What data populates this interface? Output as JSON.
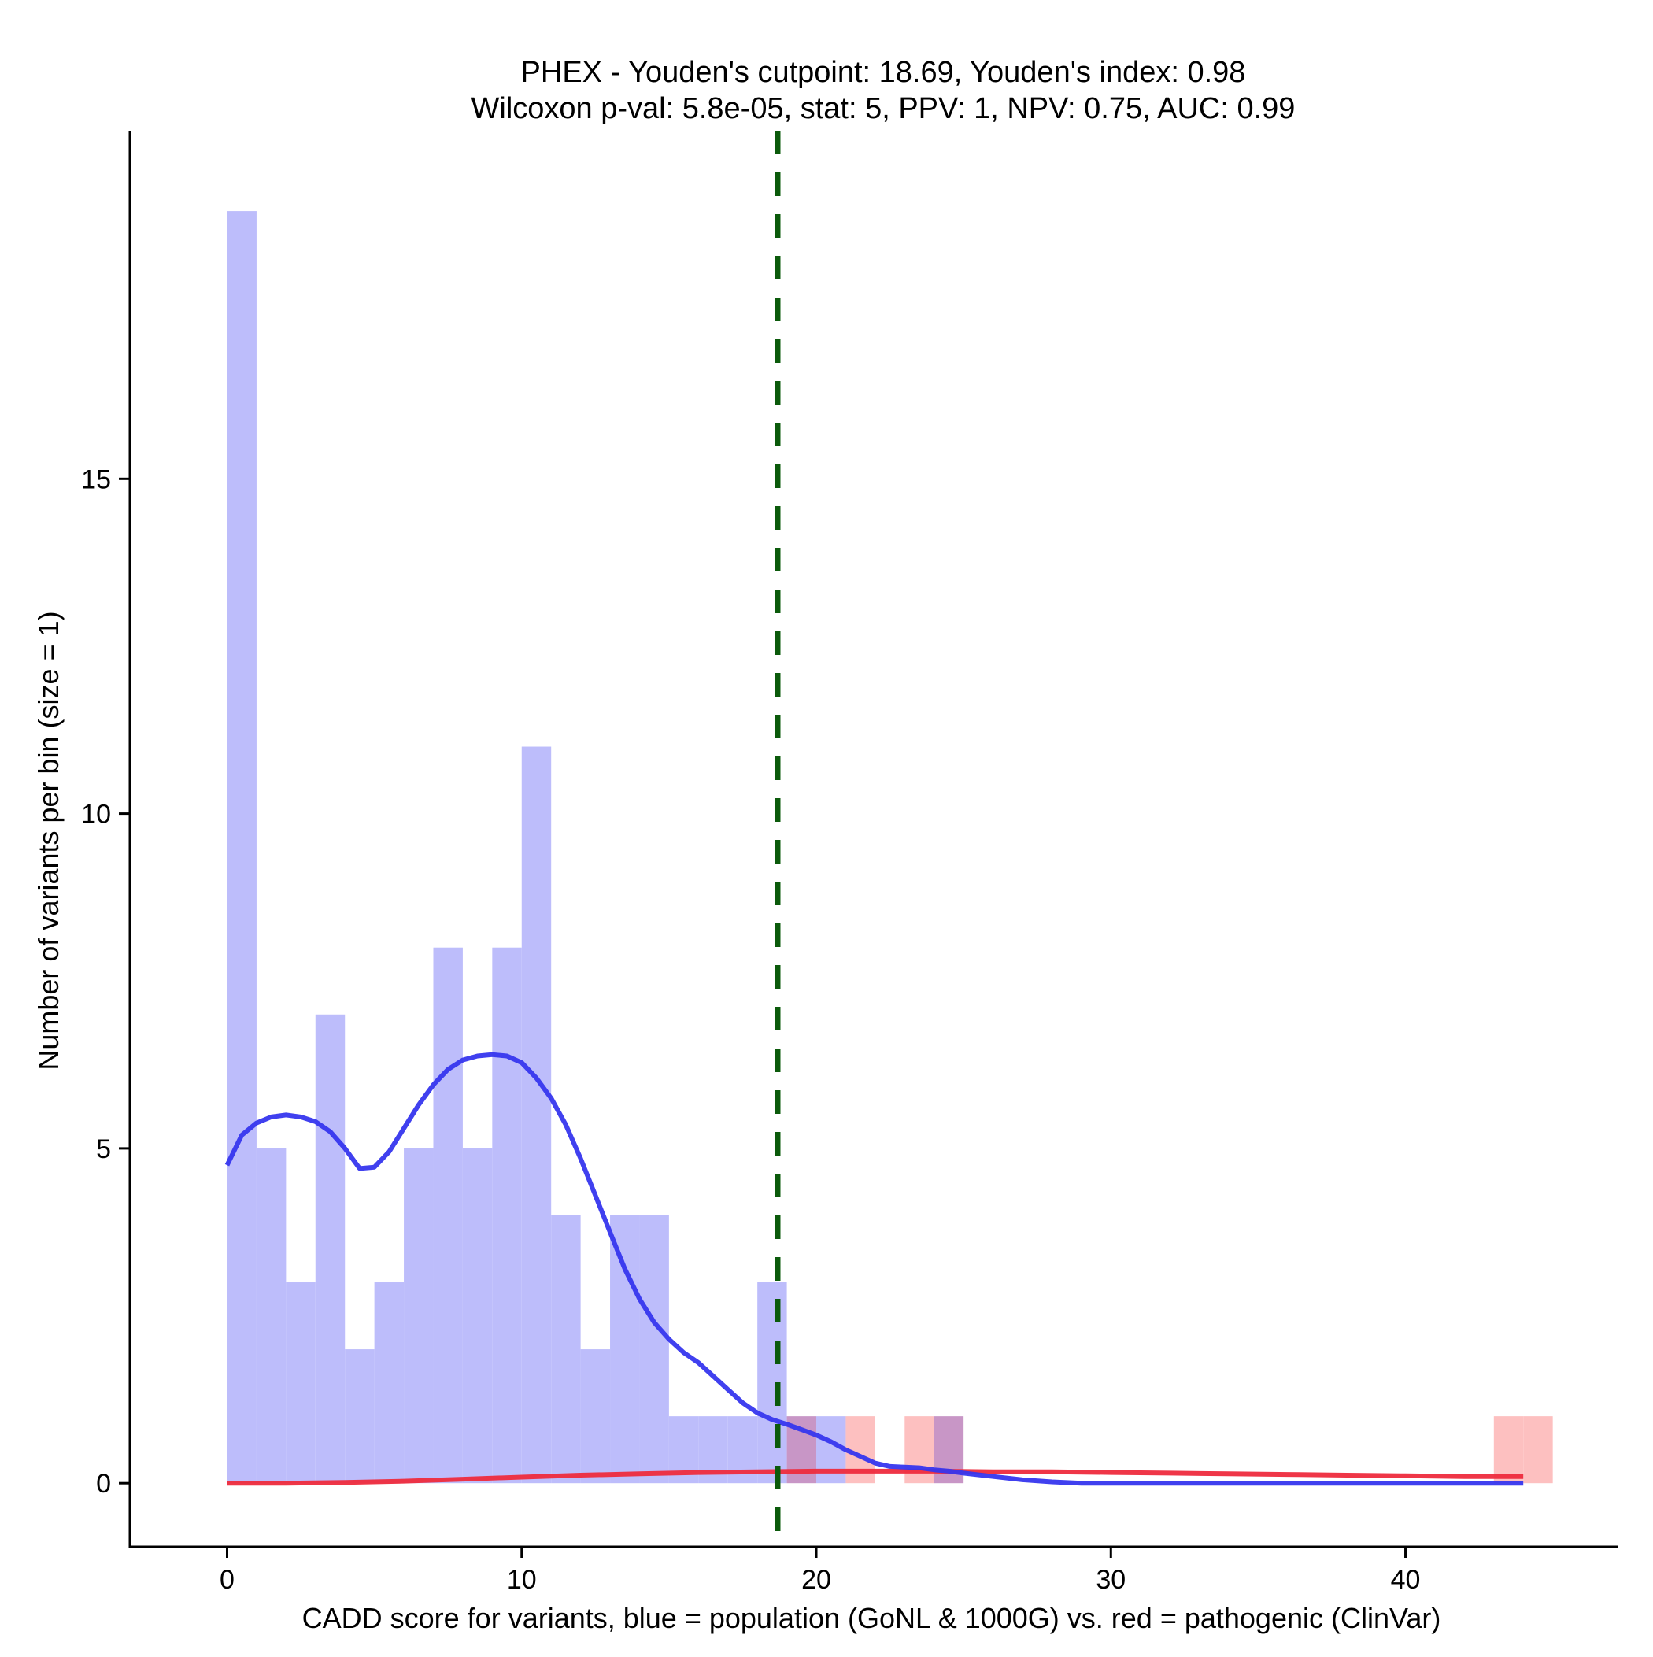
{
  "chart_data": {
    "type": "bar",
    "title": "PHEX - Youden's cutpoint: 18.69, Youden's index: 0.98",
    "subtitle": "Wilcoxon p-val: 5.8e-05, stat: 5, PPV: 1, NPV: 0.75, AUC: 0.99",
    "xlabel": "CADD score for variants, blue = population (GoNL & 1000G) vs. red = pathogenic (ClinVar)",
    "ylabel": "Number of variants per bin (size = 1)",
    "xlim": [
      -3.3,
      47.2
    ],
    "ylim": [
      -0.95,
      20.2
    ],
    "x_ticks": [
      0,
      10,
      20,
      30,
      40
    ],
    "y_ticks": [
      0,
      5,
      10,
      15
    ],
    "bin_size": 1,
    "cutpoint": 18.69,
    "grid": false,
    "legend": "none",
    "colors": {
      "population_bar": "#bdbdfb",
      "pathogenic_bar": "#fdc0c0",
      "overlap_bar": "#c896c6",
      "population_density": "#3636ee",
      "pathogenic_density": "#ee2b3d",
      "cutpoint_line": "#0b5a0b"
    },
    "series": [
      {
        "bins": [
          [
            0,
            19
          ],
          [
            1,
            5
          ],
          [
            2,
            3
          ],
          [
            3,
            7
          ],
          [
            4,
            2
          ],
          [
            5,
            3
          ],
          [
            6,
            5
          ],
          [
            7,
            8
          ],
          [
            8,
            5
          ],
          [
            9,
            8
          ],
          [
            10,
            11
          ],
          [
            11,
            4
          ],
          [
            12,
            2
          ],
          [
            13,
            4
          ],
          [
            14,
            4
          ],
          [
            15,
            1
          ],
          [
            16,
            1
          ],
          [
            17,
            1
          ],
          [
            18,
            3
          ],
          [
            19,
            1
          ],
          [
            20,
            1
          ],
          [
            24,
            1
          ]
        ]
      },
      {
        "bins": [
          [
            19,
            1
          ],
          [
            21,
            1
          ],
          [
            23,
            1
          ],
          [
            24,
            1
          ],
          [
            43,
            1
          ],
          [
            44,
            1
          ]
        ]
      }
    ],
    "density_curves": [
      {
        "points": [
          [
            0,
            4.75
          ],
          [
            0.5,
            5.2
          ],
          [
            1,
            5.38
          ],
          [
            1.5,
            5.47
          ],
          [
            2,
            5.5
          ],
          [
            2.5,
            5.47
          ],
          [
            3,
            5.4
          ],
          [
            3.5,
            5.25
          ],
          [
            4,
            5.0
          ],
          [
            4.5,
            4.7
          ],
          [
            5,
            4.72
          ],
          [
            5.5,
            4.95
          ],
          [
            6,
            5.3
          ],
          [
            6.5,
            5.65
          ],
          [
            7,
            5.95
          ],
          [
            7.5,
            6.18
          ],
          [
            8,
            6.32
          ],
          [
            8.5,
            6.38
          ],
          [
            9,
            6.4
          ],
          [
            9.5,
            6.38
          ],
          [
            10,
            6.28
          ],
          [
            10.5,
            6.05
          ],
          [
            11,
            5.75
          ],
          [
            11.5,
            5.35
          ],
          [
            12,
            4.85
          ],
          [
            12.5,
            4.3
          ],
          [
            13,
            3.75
          ],
          [
            13.5,
            3.2
          ],
          [
            14,
            2.75
          ],
          [
            14.5,
            2.4
          ],
          [
            15,
            2.15
          ],
          [
            15.5,
            1.95
          ],
          [
            16,
            1.8
          ],
          [
            16.5,
            1.6
          ],
          [
            17,
            1.4
          ],
          [
            17.5,
            1.2
          ],
          [
            18,
            1.05
          ],
          [
            18.5,
            0.95
          ],
          [
            19,
            0.88
          ],
          [
            19.5,
            0.8
          ],
          [
            20,
            0.72
          ],
          [
            20.5,
            0.62
          ],
          [
            21,
            0.5
          ],
          [
            21.5,
            0.4
          ],
          [
            22,
            0.3
          ],
          [
            22.5,
            0.25
          ],
          [
            23,
            0.24
          ],
          [
            23.5,
            0.23
          ],
          [
            24,
            0.2
          ],
          [
            24.5,
            0.18
          ],
          [
            25,
            0.15
          ],
          [
            26,
            0.1
          ],
          [
            27,
            0.05
          ],
          [
            28,
            0.02
          ],
          [
            29,
            0.0
          ],
          [
            32,
            0.0
          ],
          [
            36,
            0.0
          ],
          [
            40,
            0.0
          ],
          [
            44,
            0.0
          ]
        ]
      },
      {
        "points": [
          [
            0,
            0.0
          ],
          [
            2,
            0.0
          ],
          [
            4,
            0.01
          ],
          [
            6,
            0.03
          ],
          [
            8,
            0.06
          ],
          [
            10,
            0.09
          ],
          [
            12,
            0.12
          ],
          [
            14,
            0.14
          ],
          [
            16,
            0.16
          ],
          [
            18,
            0.17
          ],
          [
            20,
            0.18
          ],
          [
            22,
            0.18
          ],
          [
            24,
            0.18
          ],
          [
            26,
            0.17
          ],
          [
            28,
            0.17
          ],
          [
            30,
            0.16
          ],
          [
            32,
            0.15
          ],
          [
            34,
            0.14
          ],
          [
            36,
            0.13
          ],
          [
            38,
            0.12
          ],
          [
            40,
            0.11
          ],
          [
            42,
            0.1
          ],
          [
            44,
            0.1
          ]
        ]
      }
    ]
  }
}
